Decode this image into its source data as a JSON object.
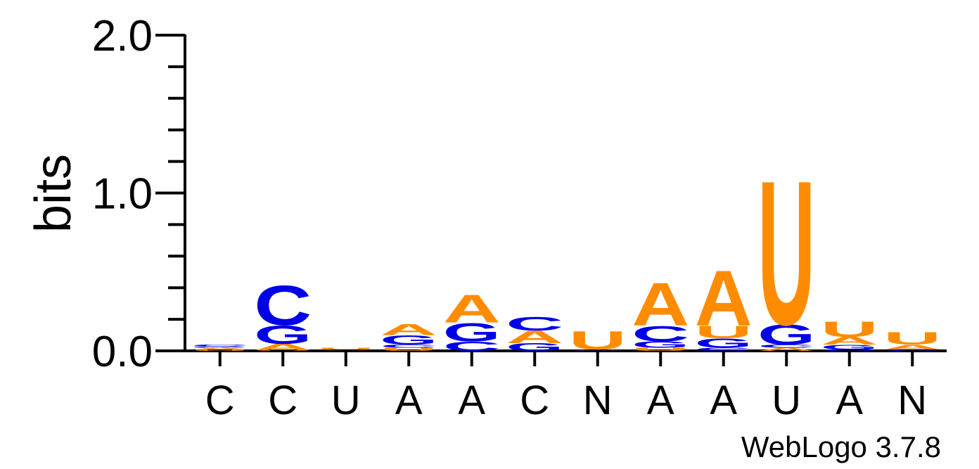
{
  "chart_data": {
    "type": "sequence-logo",
    "ylabel": "bits",
    "ylim": [
      0,
      2.0
    ],
    "yticks": [
      "0.0",
      "1.0",
      "2.0"
    ],
    "credit": "WebLogo 3.7.8",
    "colors": {
      "A": "#FF8C00",
      "U": "#FF8C00",
      "C": "#0000E6",
      "G": "#0000E6"
    },
    "positions": [
      {
        "label": "C",
        "stack": [
          [
            "U",
            0.01
          ],
          [
            "A",
            0.01
          ],
          [
            "G",
            0.01
          ],
          [
            "C",
            0.01
          ]
        ]
      },
      {
        "label": "C",
        "stack": [
          [
            "U",
            0.004
          ],
          [
            "A",
            0.04
          ],
          [
            "G",
            0.12
          ],
          [
            "C",
            0.26
          ]
        ]
      },
      {
        "label": "U",
        "stack": [
          [
            "A",
            0.004
          ],
          [
            "G",
            0.004
          ],
          [
            "U",
            0.01
          ]
        ]
      },
      {
        "label": "A",
        "stack": [
          [
            "U",
            0.02
          ],
          [
            "C",
            0.02
          ],
          [
            "G",
            0.06
          ],
          [
            "A",
            0.07
          ]
        ]
      },
      {
        "label": "A",
        "stack": [
          [
            "C",
            0.06
          ],
          [
            "G",
            0.12
          ],
          [
            "A",
            0.18
          ]
        ]
      },
      {
        "label": "C",
        "stack": [
          [
            "G",
            0.05
          ],
          [
            "A",
            0.08
          ],
          [
            "C",
            0.09
          ]
        ]
      },
      {
        "label": "N",
        "stack": [
          [
            "G",
            0.003
          ],
          [
            "A",
            0.003
          ],
          [
            "C",
            0.003
          ],
          [
            "U",
            0.12
          ]
        ]
      },
      {
        "label": "A",
        "stack": [
          [
            "U",
            0.02
          ],
          [
            "G",
            0.04
          ],
          [
            "C",
            0.1
          ],
          [
            "A",
            0.28
          ]
        ]
      },
      {
        "label": "A",
        "stack": [
          [
            "C",
            0.02
          ],
          [
            "G",
            0.06
          ],
          [
            "U",
            0.08
          ],
          [
            "A",
            0.36
          ]
        ]
      },
      {
        "label": "U",
        "stack": [
          [
            "A",
            0.02
          ],
          [
            "C",
            0.02
          ],
          [
            "G",
            0.13
          ],
          [
            "U",
            0.94
          ]
        ]
      },
      {
        "label": "A",
        "stack": [
          [
            "C",
            0.01
          ],
          [
            "G",
            0.03
          ],
          [
            "A",
            0.05
          ],
          [
            "U",
            0.1
          ]
        ]
      },
      {
        "label": "N",
        "stack": [
          [
            "C",
            0.01
          ],
          [
            "A",
            0.03
          ],
          [
            "U",
            0.08
          ]
        ]
      }
    ]
  }
}
